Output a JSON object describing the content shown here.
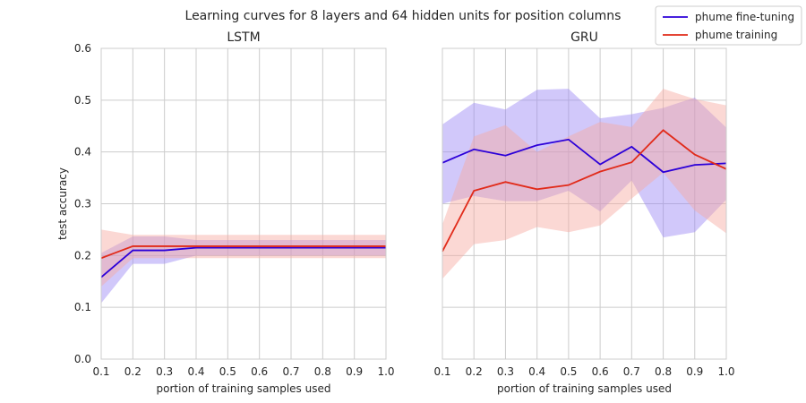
{
  "figure": {
    "suptitle": "Learning curves for 8 layers and 64 hidden units for position columns"
  },
  "legend": {
    "placement": "top-right",
    "entries": [
      {
        "label": "phume fine-tuning",
        "color": "#2c00d8"
      },
      {
        "label": "phume training",
        "color": "#e12b1a"
      }
    ]
  },
  "chart_data": [
    {
      "type": "line",
      "title": "LSTM",
      "xlabel": "portion of training samples used",
      "ylabel": "test accuracy",
      "xlim": [
        0.1,
        1.0
      ],
      "ylim": [
        0.0,
        0.6
      ],
      "xticks": [
        "0.1",
        "0.2",
        "0.3",
        "0.4",
        "0.5",
        "0.6",
        "0.7",
        "0.8",
        "0.9",
        "1.0"
      ],
      "yticks": [
        "0.0",
        "0.1",
        "0.2",
        "0.3",
        "0.4",
        "0.5",
        "0.6"
      ],
      "grid": true,
      "x": [
        0.1,
        0.2,
        0.3,
        0.4,
        0.5,
        0.6,
        0.7,
        0.8,
        0.9,
        1.0
      ],
      "series": [
        {
          "name": "phume fine-tuning",
          "color": "#2c00d8",
          "band_color": "#9a86f5",
          "values": [
            0.158,
            0.21,
            0.21,
            0.215,
            0.215,
            0.215,
            0.215,
            0.215,
            0.215,
            0.215
          ],
          "lower": [
            0.108,
            0.184,
            0.184,
            0.2,
            0.2,
            0.2,
            0.2,
            0.2,
            0.2,
            0.2
          ],
          "upper": [
            0.205,
            0.237,
            0.237,
            0.23,
            0.23,
            0.23,
            0.23,
            0.23,
            0.23,
            0.23
          ]
        },
        {
          "name": "phume training",
          "color": "#e12b1a",
          "band_color": "#f7a99f",
          "values": [
            0.195,
            0.218,
            0.218,
            0.218,
            0.218,
            0.218,
            0.218,
            0.218,
            0.218,
            0.218
          ],
          "lower": [
            0.14,
            0.195,
            0.195,
            0.195,
            0.195,
            0.195,
            0.195,
            0.195,
            0.195,
            0.195
          ],
          "upper": [
            0.25,
            0.24,
            0.24,
            0.24,
            0.24,
            0.24,
            0.24,
            0.24,
            0.24,
            0.24
          ]
        }
      ]
    },
    {
      "type": "line",
      "title": "GRU",
      "xlabel": "portion of training samples used",
      "ylabel": "",
      "xlim": [
        0.1,
        1.0
      ],
      "ylim": [
        0.0,
        0.6
      ],
      "xticks": [
        "0.1",
        "0.2",
        "0.3",
        "0.4",
        "0.5",
        "0.6",
        "0.7",
        "0.8",
        "0.9",
        "1.0"
      ],
      "yticks": [],
      "grid": true,
      "x": [
        0.1,
        0.2,
        0.3,
        0.4,
        0.5,
        0.6,
        0.7,
        0.8,
        0.9,
        1.0
      ],
      "series": [
        {
          "name": "phume fine-tuning",
          "color": "#2c00d8",
          "band_color": "#9a86f5",
          "values": [
            0.379,
            0.405,
            0.393,
            0.413,
            0.424,
            0.376,
            0.41,
            0.361,
            0.375,
            0.378
          ],
          "lower": [
            0.3,
            0.315,
            0.305,
            0.305,
            0.325,
            0.285,
            0.345,
            0.235,
            0.245,
            0.308
          ],
          "upper": [
            0.453,
            0.495,
            0.482,
            0.52,
            0.522,
            0.465,
            0.473,
            0.485,
            0.505,
            0.447
          ]
        },
        {
          "name": "phume training",
          "color": "#e12b1a",
          "band_color": "#f7a99f",
          "values": [
            0.208,
            0.325,
            0.342,
            0.328,
            0.336,
            0.362,
            0.38,
            0.442,
            0.395,
            0.367
          ],
          "lower": [
            0.155,
            0.222,
            0.23,
            0.255,
            0.245,
            0.258,
            0.31,
            0.36,
            0.287,
            0.243
          ],
          "upper": [
            0.26,
            0.43,
            0.452,
            0.4,
            0.43,
            0.458,
            0.448,
            0.522,
            0.502,
            0.49
          ]
        }
      ]
    }
  ]
}
